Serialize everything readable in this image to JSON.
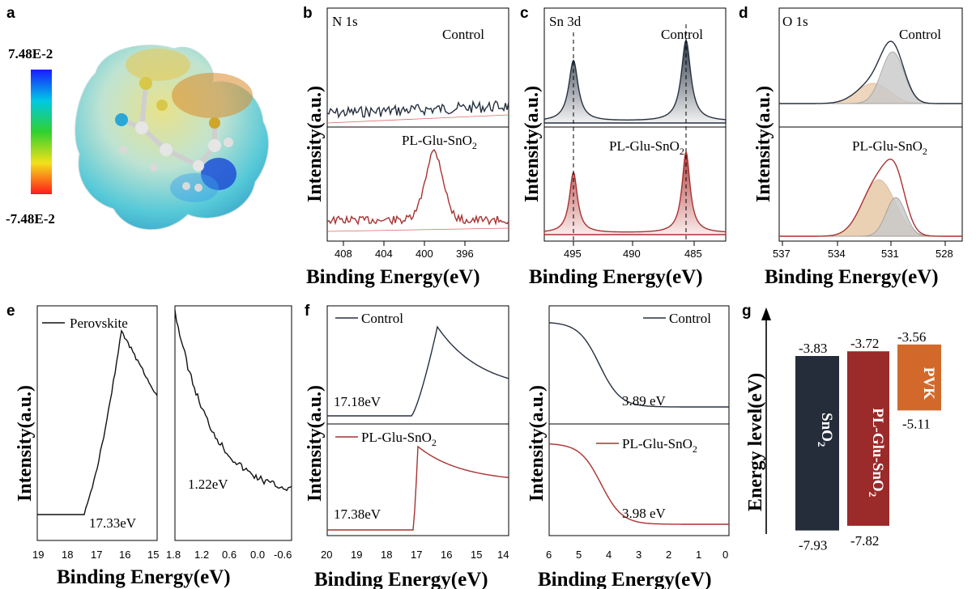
{
  "panel_labels": [
    "a",
    "b",
    "c",
    "d",
    "e",
    "f",
    "g"
  ],
  "colors": {
    "control": "#263040",
    "treated": "#a83232",
    "perovskite": "#111111",
    "sno2": "#262d3a",
    "plglu": "#9b2a2a",
    "pvk": "#d2692a",
    "fit_light": "#e8c9a8",
    "fit_mid": "#c9c9c9"
  },
  "esp": {
    "max_label": "7.48E-2",
    "min_label": "-7.48E-2"
  },
  "xps_xlabel": "Binding Energy(eV)",
  "ups_xlabel": "Binding Energy(eV)",
  "ylabel": "Intensity(a.u.)",
  "energy_ylabel": "Energy level(eV)",
  "b": {
    "title": "N 1s",
    "top": "Control",
    "bottom": "PL-Glu-SnO",
    "sub": "2",
    "ticks": [
      "408",
      "404",
      "400",
      "396"
    ]
  },
  "c": {
    "title": "Sn 3d",
    "top": "Control",
    "bottom": "PL-Glu-SnO",
    "sub": "2",
    "ticks": [
      "495",
      "490",
      "485"
    ]
  },
  "d": {
    "title": "O 1s",
    "top": "Control",
    "bottom": "PL-Glu-SnO",
    "sub": "2",
    "ticks": [
      "537",
      "534",
      "531",
      "528"
    ]
  },
  "e": {
    "legend": "Perovskite",
    "val1": "17.33eV",
    "val2": "1.22eV",
    "ticks1": [
      "19",
      "18",
      "17",
      "16",
      "15"
    ],
    "ticks2": [
      "1.8",
      "1.2",
      "0.6",
      "0.0",
      "-0.6"
    ]
  },
  "f": {
    "top": "Control",
    "bottom": "PL-Glu-SnO",
    "sub": "2",
    "val_c1": "17.18eV",
    "val_t1": "17.38eV",
    "val_c2": "3.89 eV",
    "val_t2": "3.98 eV",
    "ticks1": [
      "20",
      "19",
      "18",
      "17",
      "16",
      "15",
      "14"
    ],
    "ticks2": [
      "6",
      "5",
      "4",
      "3",
      "2",
      "1",
      "0"
    ]
  },
  "g": {
    "bars": [
      {
        "name": "SnO",
        "sub": "2",
        "cbm": "-3.83",
        "vbm": "-7.93"
      },
      {
        "name": "PL-Glu-SnO",
        "sub": "2",
        "cbm": "-3.72",
        "vbm": "-7.82"
      },
      {
        "name": "PVK",
        "sub": "",
        "cbm": "-3.56",
        "vbm": "-5.11"
      }
    ]
  },
  "chart_data": [
    {
      "type": "line",
      "panel": "b",
      "title": "N 1s",
      "xlabel": "Binding Energy(eV)",
      "ylabel": "Intensity(a.u.)",
      "xlim": [
        410,
        393
      ],
      "x_reversed": true,
      "xticks": [
        408,
        404,
        400,
        396
      ],
      "series": [
        {
          "name": "Control",
          "x": [
            410,
            396,
            393
          ],
          "y": [
            0.1,
            0.1,
            0.1
          ]
        },
        {
          "name": "PL-Glu-SnO2",
          "peak_x": 399.8,
          "x": [
            410,
            402,
            401,
            400,
            399,
            398,
            393
          ],
          "y": [
            0.1,
            0.12,
            0.45,
            0.9,
            0.5,
            0.15,
            0.1
          ]
        }
      ]
    },
    {
      "type": "line",
      "panel": "c",
      "title": "Sn 3d",
      "xlabel": "Binding Energy(eV)",
      "ylabel": "Intensity(a.u.)",
      "xlim": [
        497,
        484
      ],
      "x_reversed": true,
      "xticks": [
        495,
        490,
        485
      ],
      "series": [
        {
          "name": "Control",
          "peaks": [
            495.2,
            486.8
          ]
        },
        {
          "name": "PL-Glu-SnO2",
          "peaks": [
            495.3,
            486.9
          ]
        }
      ]
    },
    {
      "type": "line",
      "panel": "d",
      "title": "O 1s",
      "xlabel": "Binding Energy(eV)",
      "ylabel": "Intensity(a.u.)",
      "xlim": [
        537,
        527
      ],
      "x_reversed": true,
      "xticks": [
        537,
        534,
        531,
        528
      ],
      "series": [
        {
          "name": "Control",
          "peak_x": 530.8
        },
        {
          "name": "PL-Glu-SnO2",
          "peak_x": 530.9
        }
      ]
    },
    {
      "type": "line",
      "panel": "e",
      "xlabel": "Binding Energy(eV)",
      "ylabel": "Intensity(a.u.)",
      "legend": [
        "Perovskite"
      ],
      "annotations": [
        "17.33eV",
        "1.22eV"
      ],
      "xlim_left": [
        19,
        15
      ],
      "xlim_right": [
        1.8,
        -0.6
      ],
      "xticks_left": [
        19,
        18,
        17,
        16,
        15
      ],
      "xticks_right": [
        1.8,
        1.2,
        0.6,
        0.0,
        -0.6
      ]
    },
    {
      "type": "line",
      "panel": "f",
      "xlabel": "Binding Energy(eV)",
      "ylabel": "Intensity(a.u.)",
      "legend": [
        "Control",
        "PL-Glu-SnO2"
      ],
      "annotations": [
        "17.18eV",
        "17.38eV",
        "3.89 eV",
        "3.98 eV"
      ],
      "xlim_left": [
        20,
        14
      ],
      "xlim_right": [
        6,
        0
      ],
      "xticks_left": [
        20,
        19,
        18,
        17,
        16,
        15,
        14
      ],
      "xticks_right": [
        6,
        5,
        4,
        3,
        2,
        1,
        0
      ]
    },
    {
      "type": "bar",
      "panel": "g",
      "ylabel": "Energy level(eV)",
      "categories": [
        "SnO2",
        "PL-Glu-SnO2",
        "PVK"
      ],
      "cbm": [
        -3.83,
        -3.72,
        -3.56
      ],
      "vbm": [
        -7.93,
        -7.82,
        -5.11
      ]
    }
  ]
}
